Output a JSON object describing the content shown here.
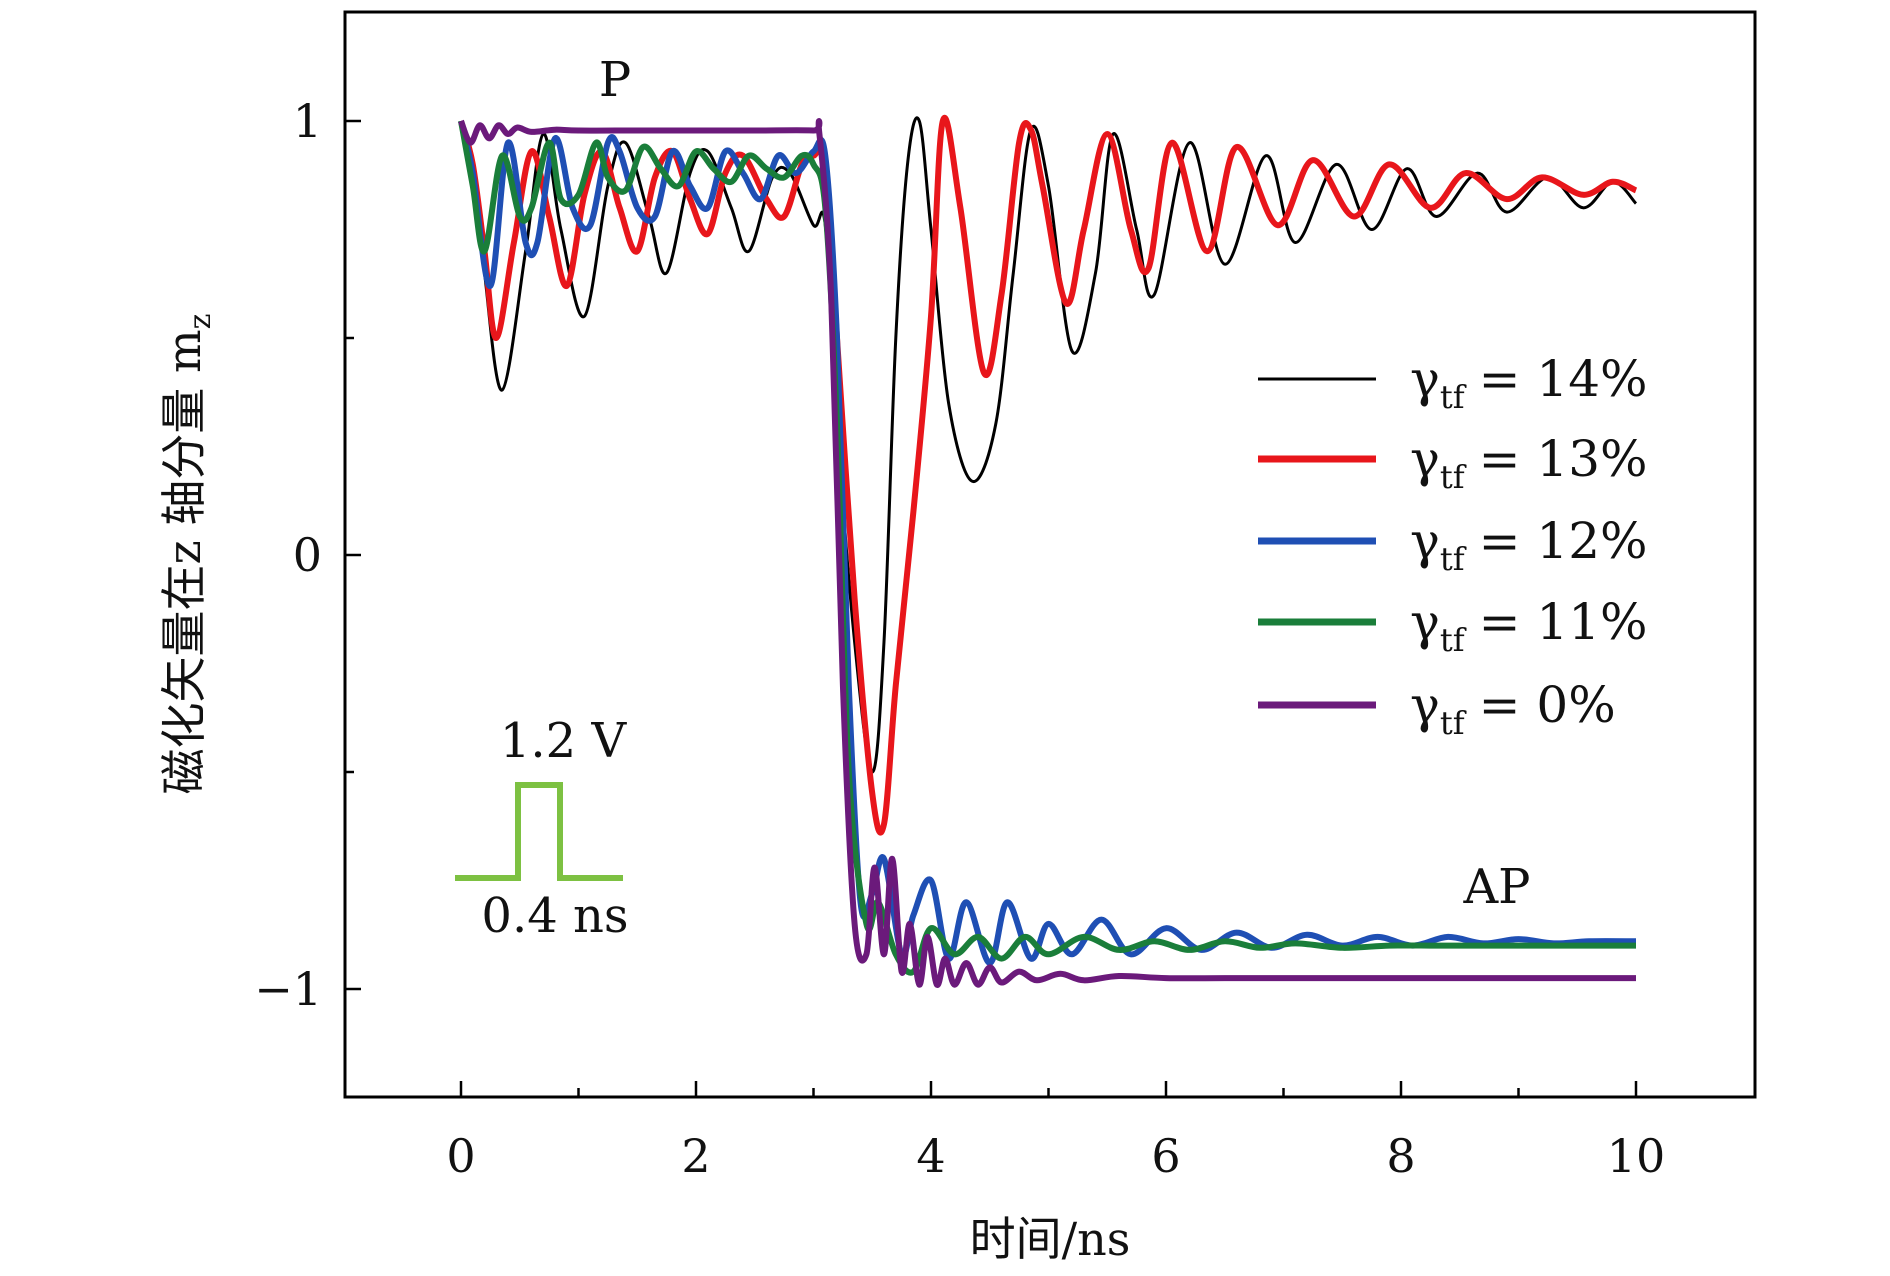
{
  "chart_data": {
    "type": "line",
    "xlabel": "时间/ns",
    "ylabel": "磁化矢量在z 轴分量 m",
    "ylabel_sub": "z",
    "xlim": [
      -1,
      11
    ],
    "ylim": [
      -1.25,
      1.25
    ],
    "x_ticks": [
      "0",
      "2",
      "4",
      "6",
      "8",
      "10"
    ],
    "y_ticks": [
      "−1",
      "0",
      "1"
    ],
    "grid": false,
    "legend_position": "right",
    "annotations": {
      "p_label": "P",
      "ap_label": "AP",
      "pulse_voltage": "1.2 V",
      "pulse_width": "0.4 ns"
    },
    "series": [
      {
        "name": "γtf = 14%",
        "legend_symbol": "γ",
        "legend_sub": "tf",
        "legend_eq": "= 14%",
        "color": "#000000",
        "x": [
          0,
          0.12,
          0.2,
          0.35,
          0.55,
          0.7,
          0.85,
          1.05,
          1.25,
          1.4,
          1.6,
          1.75,
          1.95,
          2.1,
          2.3,
          2.45,
          2.65,
          2.8,
          3.0,
          3.1,
          3.2,
          3.35,
          3.5,
          3.6,
          3.7,
          3.8,
          3.9,
          4.0,
          4.15,
          4.35,
          4.55,
          4.7,
          4.85,
          5.0,
          5.2,
          5.4,
          5.55,
          5.75,
          5.9,
          6.2,
          6.5,
          6.85,
          7.1,
          7.45,
          7.75,
          8.05,
          8.3,
          8.65,
          8.9,
          9.25,
          9.55,
          9.8,
          10.0
        ],
        "y": [
          1.0,
          0.85,
          0.65,
          0.38,
          0.7,
          0.97,
          0.75,
          0.55,
          0.85,
          0.95,
          0.78,
          0.65,
          0.88,
          0.93,
          0.8,
          0.7,
          0.87,
          0.88,
          0.76,
          0.76,
          0.3,
          -0.2,
          -0.5,
          -0.2,
          0.5,
          0.9,
          1.0,
          0.75,
          0.35,
          0.17,
          0.3,
          0.65,
          0.98,
          0.85,
          0.47,
          0.65,
          0.97,
          0.75,
          0.6,
          0.95,
          0.67,
          0.92,
          0.72,
          0.9,
          0.75,
          0.89,
          0.78,
          0.88,
          0.79,
          0.87,
          0.8,
          0.86,
          0.81
        ]
      },
      {
        "name": "γtf = 13%",
        "legend_symbol": "γ",
        "legend_sub": "tf",
        "legend_eq": "= 13%",
        "color": "#e8161b",
        "x": [
          0,
          0.1,
          0.2,
          0.3,
          0.45,
          0.6,
          0.75,
          0.9,
          1.05,
          1.2,
          1.35,
          1.5,
          1.65,
          1.8,
          1.95,
          2.1,
          2.25,
          2.4,
          2.6,
          2.75,
          2.9,
          3.0,
          3.1,
          3.2,
          3.35,
          3.5,
          3.6,
          3.7,
          3.85,
          4.0,
          4.1,
          4.25,
          4.45,
          4.6,
          4.75,
          4.85,
          4.95,
          5.15,
          5.3,
          5.5,
          5.7,
          5.85,
          6.05,
          6.35,
          6.6,
          6.95,
          7.25,
          7.6,
          7.9,
          8.25,
          8.55,
          8.9,
          9.2,
          9.55,
          9.8,
          10.0
        ],
        "y": [
          1.0,
          0.9,
          0.7,
          0.5,
          0.72,
          0.93,
          0.78,
          0.62,
          0.83,
          0.93,
          0.8,
          0.7,
          0.87,
          0.93,
          0.82,
          0.74,
          0.88,
          0.92,
          0.82,
          0.78,
          0.9,
          0.92,
          0.9,
          0.5,
          -0.1,
          -0.55,
          -0.62,
          -0.3,
          0.1,
          0.55,
          1.0,
          0.8,
          0.42,
          0.6,
          0.95,
          0.98,
          0.85,
          0.58,
          0.75,
          0.97,
          0.75,
          0.66,
          0.95,
          0.7,
          0.94,
          0.76,
          0.91,
          0.78,
          0.9,
          0.8,
          0.88,
          0.82,
          0.87,
          0.83,
          0.86,
          0.84
        ]
      },
      {
        "name": "γtf = 12%",
        "legend_symbol": "γ",
        "legend_sub": "tf",
        "legend_eq": "= 12%",
        "color": "#1f4fb4",
        "x": [
          0,
          0.1,
          0.25,
          0.4,
          0.55,
          0.65,
          0.8,
          0.95,
          1.1,
          1.25,
          1.35,
          1.5,
          1.65,
          1.8,
          1.95,
          2.1,
          2.25,
          2.4,
          2.55,
          2.7,
          2.85,
          3.0,
          3.1,
          3.2,
          3.3,
          3.4,
          3.5,
          3.6,
          3.75,
          3.85,
          4.0,
          4.15,
          4.3,
          4.5,
          4.65,
          4.85,
          5.0,
          5.2,
          5.45,
          5.7,
          6.0,
          6.3,
          6.6,
          6.9,
          7.2,
          7.5,
          7.8,
          8.1,
          8.4,
          8.7,
          9.0,
          9.3,
          9.6,
          10.0
        ],
        "y": [
          1.0,
          0.88,
          0.62,
          0.95,
          0.72,
          0.72,
          0.96,
          0.8,
          0.76,
          0.95,
          0.93,
          0.8,
          0.78,
          0.93,
          0.85,
          0.8,
          0.93,
          0.88,
          0.82,
          0.92,
          0.88,
          0.93,
          0.92,
          0.5,
          -0.3,
          -0.8,
          -0.78,
          -0.7,
          -0.92,
          -0.83,
          -0.75,
          -0.93,
          -0.8,
          -0.94,
          -0.8,
          -0.93,
          -0.85,
          -0.92,
          -0.84,
          -0.92,
          -0.86,
          -0.91,
          -0.87,
          -0.905,
          -0.875,
          -0.9,
          -0.88,
          -0.9,
          -0.88,
          -0.895,
          -0.885,
          -0.895,
          -0.89,
          -0.89
        ]
      },
      {
        "name": "γtf = 11%",
        "legend_symbol": "γ",
        "legend_sub": "tf",
        "legend_eq": "= 11%",
        "color": "#1a7e3a",
        "x": [
          0,
          0.1,
          0.2,
          0.35,
          0.5,
          0.6,
          0.75,
          0.85,
          1.0,
          1.15,
          1.25,
          1.4,
          1.55,
          1.7,
          1.85,
          2.0,
          2.15,
          2.3,
          2.45,
          2.6,
          2.75,
          2.9,
          3.0,
          3.1,
          3.2,
          3.3,
          3.45,
          3.55,
          3.7,
          3.85,
          4.0,
          4.2,
          4.4,
          4.6,
          4.8,
          5.0,
          5.3,
          5.6,
          5.9,
          6.2,
          6.5,
          6.8,
          7.1,
          7.5,
          7.9,
          8.3,
          8.7,
          9.1,
          9.5,
          10.0
        ],
        "y": [
          1.0,
          0.85,
          0.7,
          0.92,
          0.78,
          0.8,
          0.95,
          0.82,
          0.83,
          0.95,
          0.87,
          0.84,
          0.94,
          0.89,
          0.85,
          0.93,
          0.89,
          0.86,
          0.92,
          0.89,
          0.87,
          0.92,
          0.9,
          0.8,
          0.3,
          -0.5,
          -0.85,
          -0.8,
          -0.92,
          -0.96,
          -0.86,
          -0.92,
          -0.88,
          -0.93,
          -0.88,
          -0.92,
          -0.88,
          -0.91,
          -0.89,
          -0.91,
          -0.89,
          -0.905,
          -0.895,
          -0.905,
          -0.9,
          -0.9,
          -0.9,
          -0.9,
          -0.9,
          -0.9
        ]
      },
      {
        "name": "γtf = 0%",
        "legend_symbol": "γ",
        "legend_sub": "tf",
        "legend_eq": "= 0%",
        "color": "#6b1a7b",
        "x": [
          0,
          0.08,
          0.16,
          0.24,
          0.32,
          0.4,
          0.48,
          0.6,
          0.8,
          1.0,
          1.5,
          2.0,
          2.5,
          3.0,
          3.05,
          3.15,
          3.25,
          3.35,
          3.45,
          3.52,
          3.6,
          3.67,
          3.75,
          3.82,
          3.9,
          3.97,
          4.05,
          4.12,
          4.2,
          4.3,
          4.4,
          4.5,
          4.6,
          4.75,
          4.9,
          5.1,
          5.3,
          5.6,
          6.0,
          6.5,
          7.0,
          8.0,
          9.0,
          10.0
        ],
        "y": [
          1.0,
          0.95,
          0.99,
          0.96,
          0.99,
          0.97,
          0.985,
          0.975,
          0.98,
          0.978,
          0.978,
          0.978,
          0.978,
          0.978,
          0.97,
          0.6,
          -0.3,
          -0.85,
          -0.92,
          -0.72,
          -0.92,
          -0.7,
          -0.96,
          -0.85,
          -0.99,
          -0.88,
          -0.99,
          -0.93,
          -0.99,
          -0.94,
          -0.99,
          -0.95,
          -0.985,
          -0.96,
          -0.98,
          -0.965,
          -0.98,
          -0.97,
          -0.975,
          -0.975,
          -0.975,
          -0.975,
          -0.975,
          -0.975
        ]
      }
    ]
  }
}
